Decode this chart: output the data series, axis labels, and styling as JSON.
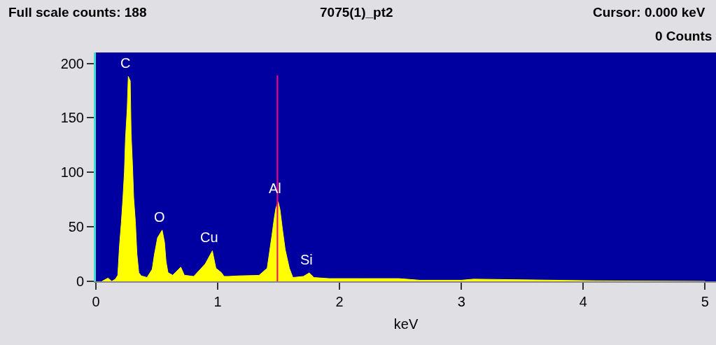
{
  "chart_data": {
    "type": "area",
    "xlabel": "keV",
    "x": [
      0.05,
      0.1,
      0.13,
      0.16,
      0.18,
      0.194,
      0.209,
      0.222,
      0.234,
      0.243,
      0.257,
      0.266,
      0.282,
      0.289,
      0.3,
      0.31,
      0.324,
      0.337,
      0.352,
      0.372,
      0.42,
      0.462,
      0.481,
      0.506,
      0.544,
      0.563,
      0.576,
      0.592,
      0.63,
      0.697,
      0.726,
      0.803,
      0.898,
      0.956,
      0.985,
      1.03,
      1.052,
      1.09,
      1.167,
      1.339,
      1.406,
      1.445,
      1.464,
      1.477,
      1.496,
      1.511,
      1.531,
      1.554,
      1.588,
      1.617,
      1.703,
      1.751,
      1.789,
      1.914,
      2.2,
      2.488,
      2.66,
      3.0,
      3.1,
      4.1,
      5.0
    ],
    "series": [
      {
        "color": "#ffff00",
        "values": [
          0,
          3,
          0,
          2,
          5.6,
          33,
          54,
          76,
          100,
          131,
          158,
          188,
          184,
          136,
          108,
          77,
          55,
          25,
          8,
          5,
          3.5,
          11,
          25,
          40,
          47,
          36,
          18,
          8,
          5.6,
          13,
          5.6,
          4.5,
          16,
          28,
          12,
          8,
          4.5,
          4.5,
          5,
          5.5,
          12,
          42,
          58,
          67,
          73,
          66,
          48,
          29,
          12,
          3.5,
          4.5,
          7.7,
          3.5,
          2.5,
          2.5,
          2.5,
          1,
          1,
          2,
          0.5,
          0
        ]
      }
    ],
    "xlim": [
      0,
      5.09
    ],
    "xticks": [
      0,
      1,
      2,
      3,
      4,
      5
    ],
    "ylim": [
      0,
      210
    ],
    "yticks": [
      0,
      50,
      100,
      150,
      200
    ],
    "grid": false,
    "ref_lines": [
      {
        "axis": "x",
        "value": 1.49,
        "color": "#ff0080"
      }
    ],
    "annotations": [
      "Full scale counts: 188",
      "7075(1)_pt2",
      "Cursor: 0.000 keV",
      "0 Counts",
      {
        "text": "C",
        "x": 0.266,
        "y": 188
      },
      {
        "text": "O",
        "x": 0.544,
        "y": 47
      },
      {
        "text": "Cu",
        "x": 0.956,
        "y": 28
      },
      {
        "text": "Al",
        "x": 1.496,
        "y": 73
      },
      {
        "text": "Si",
        "x": 1.751,
        "y": 7.7
      }
    ]
  }
}
